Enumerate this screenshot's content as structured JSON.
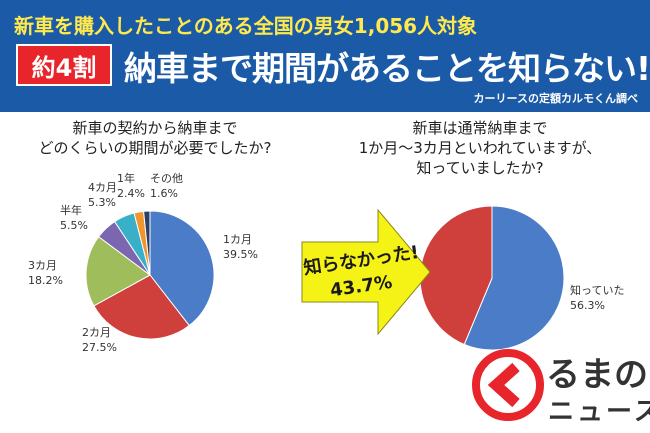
{
  "header": {
    "subtitle": "新車を購入したことのある全国の男女1,056人対象",
    "badge": "約4割",
    "headline": "納車まで期間があることを知らない!",
    "source": "カーリースの定額カルモくん調べ"
  },
  "chart_left": {
    "question": [
      "新車の契約から納車まで",
      "どのくらいの期間が必要でしたか?"
    ]
  },
  "chart_right": {
    "question": [
      "新車は通常納車まで",
      "1か月〜3カ月といわれていますが、",
      "知っていましたか?"
    ],
    "arrow_text": [
      "知らなかった!",
      "43.7%"
    ]
  },
  "chart_data": [
    {
      "type": "pie",
      "categories": [
        "1カ月",
        "2カ月",
        "3カ月",
        "半年",
        "4カ月",
        "1年",
        "その他"
      ],
      "values": [
        39.5,
        27.5,
        18.2,
        5.5,
        5.3,
        2.4,
        1.6
      ],
      "labels": [
        "39.5%",
        "27.5%",
        "18.2%",
        "5.5%",
        "5.3%",
        "2.4%",
        "1.6%"
      ],
      "colors": [
        "#4a7cc7",
        "#cf3f3b",
        "#9fbd5a",
        "#7b66b0",
        "#3ab0c8",
        "#f0962e",
        "#2f3f66"
      ]
    },
    {
      "type": "pie",
      "categories": [
        "知っていた",
        "知らなかった!"
      ],
      "values": [
        56.3,
        43.7
      ],
      "labels": [
        "56.3%",
        "43.7%"
      ],
      "colors": [
        "#4a7cc7",
        "#cf3f3b"
      ]
    }
  ],
  "brand": {
    "top": "るまの",
    "bottom": "ニュース",
    "accent": "#e8252a"
  }
}
